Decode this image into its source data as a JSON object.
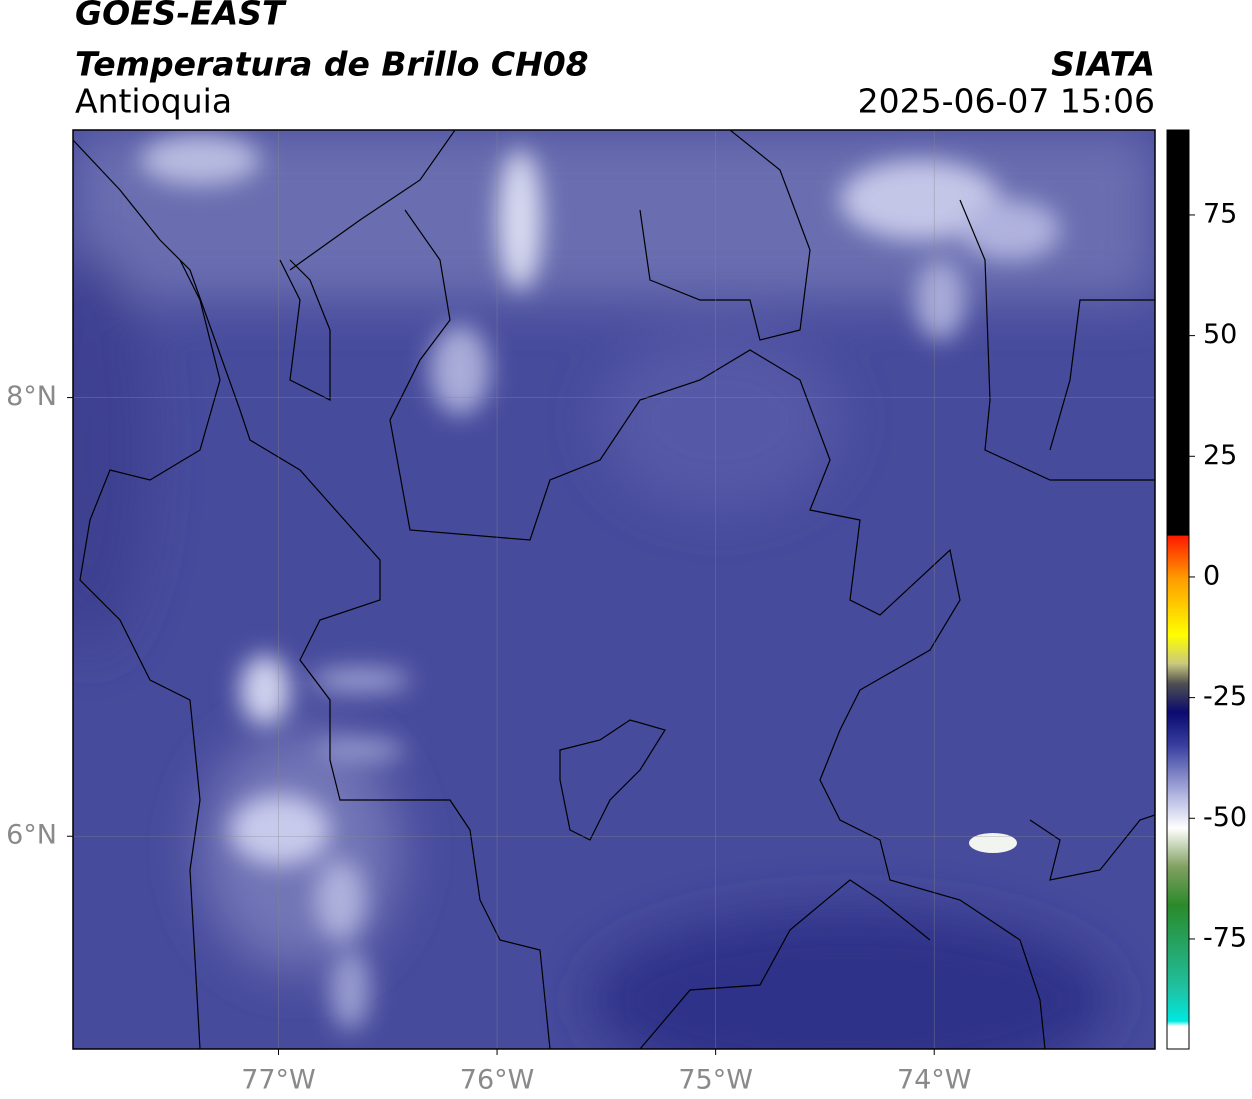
{
  "header": {
    "title": "GOES-EAST",
    "subtitle": "Temperatura de Brillo CH08",
    "region": "Antioquia",
    "source": "SIATA",
    "datetime": "2025-06-07 15:06"
  },
  "map": {
    "xlim": [
      -77.94,
      -72.99
    ],
    "ylim": [
      5.03,
      9.22
    ],
    "xticks": [
      {
        "value": -77,
        "label": "77°W"
      },
      {
        "value": -76,
        "label": "76°W"
      },
      {
        "value": -75,
        "label": "75°W"
      },
      {
        "value": -74,
        "label": "74°W"
      }
    ],
    "yticks": [
      {
        "value": 8,
        "label": "8°N"
      },
      {
        "value": 6,
        "label": "6°N"
      }
    ],
    "grid": true
  },
  "colorbar": {
    "ylim": [
      -97.8,
      92.6
    ],
    "yticks": [
      75,
      50,
      25,
      0,
      -25,
      -50,
      -75
    ],
    "stops": [
      {
        "value": 92.6,
        "color": "#000000"
      },
      {
        "value": 8.7,
        "color": "#000000"
      },
      {
        "value": 8.5,
        "color": "#ff1a00"
      },
      {
        "value": 0,
        "color": "#ff9900"
      },
      {
        "value": -12,
        "color": "#ffff00"
      },
      {
        "value": -18,
        "color": "#c8c880"
      },
      {
        "value": -22,
        "color": "#505050"
      },
      {
        "value": -28,
        "color": "#0a0a70"
      },
      {
        "value": -35,
        "color": "#3a40a0"
      },
      {
        "value": -45,
        "color": "#b0b4e0"
      },
      {
        "value": -52,
        "color": "#ffffff"
      },
      {
        "value": -60,
        "color": "#80a060"
      },
      {
        "value": -68,
        "color": "#2a8a2a"
      },
      {
        "value": -85,
        "color": "#20c0a0"
      },
      {
        "value": -92,
        "color": "#00e8e0"
      },
      {
        "value": -93,
        "color": "#ffffff"
      },
      {
        "value": -97.8,
        "color": "#ffffff"
      }
    ]
  }
}
